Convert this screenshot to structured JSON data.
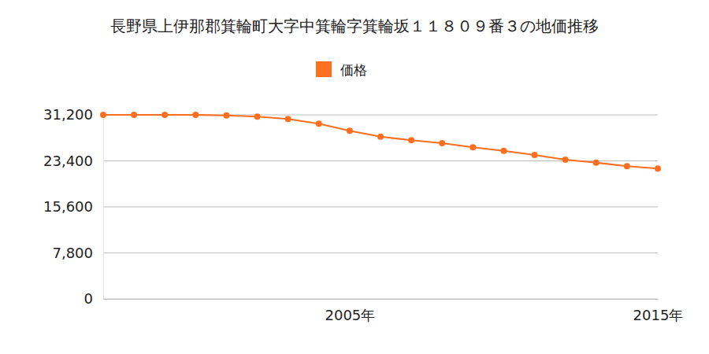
{
  "chart_data": {
    "type": "line",
    "title": "長野県上伊那郡箕輪町大字中箕輪字箕輪坂１１８０９番３の地価推移",
    "x": [
      1997,
      1998,
      1999,
      2000,
      2001,
      2002,
      2003,
      2004,
      2005,
      2006,
      2007,
      2008,
      2009,
      2010,
      2011,
      2012,
      2013,
      2014,
      2015
    ],
    "series": [
      {
        "name": "価格",
        "color": "#ff6f1f",
        "marker": "circle",
        "values": [
          31200,
          31200,
          31200,
          31200,
          31100,
          30900,
          30500,
          29700,
          28500,
          27500,
          26900,
          26400,
          25700,
          25100,
          24400,
          23600,
          23100,
          22500,
          22100
        ]
      }
    ],
    "xlim": [
      1997,
      2015
    ],
    "xticks": [
      {
        "value": 2005,
        "label": "2005年"
      },
      {
        "value": 2015,
        "label": "2015年"
      }
    ],
    "ylim": [
      0,
      31200
    ],
    "yticks": [
      0,
      {
        "value": 7800,
        "label": "7,800"
      },
      {
        "value": 15600,
        "label": "15,600"
      },
      {
        "value": 23400,
        "label": "23,400"
      },
      {
        "value": 31200,
        "label": "31,200"
      }
    ],
    "grid": true,
    "legend": "top"
  }
}
